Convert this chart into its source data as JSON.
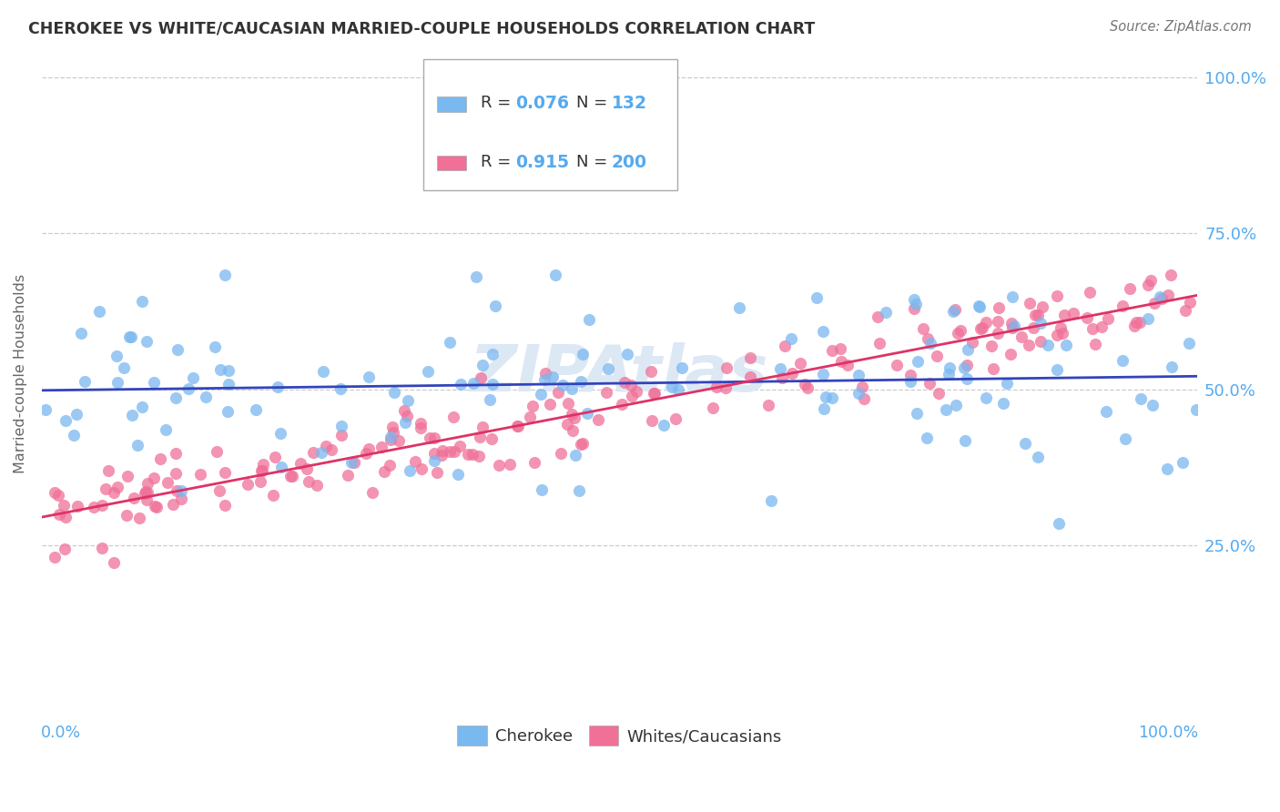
{
  "title": "CHEROKEE VS WHITE/CAUCASIAN MARRIED-COUPLE HOUSEHOLDS CORRELATION CHART",
  "source": "Source: ZipAtlas.com",
  "ylabel": "Married-couple Households",
  "cherokee_color": "#7ab8f0",
  "white_color": "#f07098",
  "cherokee_line_color": "#3344bb",
  "white_line_color": "#dd3366",
  "background_color": "#ffffff",
  "grid_color": "#cccccc",
  "title_color": "#333333",
  "axis_tick_color": "#55aaee",
  "r_cherokee": "0.076",
  "n_cherokee": "132",
  "r_white": "0.915",
  "n_white": "200",
  "cherokee_intercept": 0.495,
  "cherokee_slope": 0.04,
  "cherokee_noise": 0.085,
  "white_intercept": 0.295,
  "white_slope": 0.355,
  "white_noise": 0.032,
  "seed": 77
}
